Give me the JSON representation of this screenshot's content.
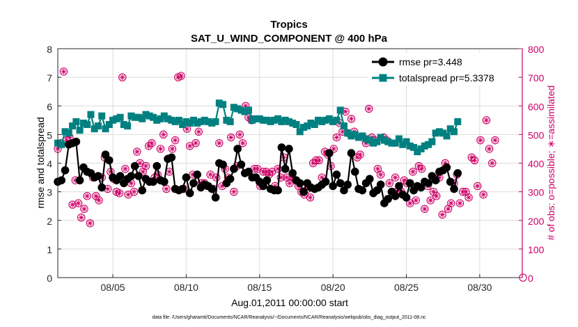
{
  "chart_data": {
    "type": "line",
    "title": "Tropics",
    "subtitle": "SAT_U_WIND_COMPONENT @ 400 hPa",
    "xlabel": "Aug.01,2011 00:00:00 start",
    "ylabel_left": "rmse and totalspread",
    "ylabel_right": "# of obs: o=possible; ∗=assimilated",
    "footnote": "data file: /Users/gharamti/Documents/NCAR/Reanalysis/~/Documents/NCAR/Reanalysis/webpub/obs_diag_output_2011-08.nc",
    "x_unit": "days since Aug 01 2011 00:00 (6-hourly)",
    "xlim": [
      0.25,
      31.9
    ],
    "ylim_left": [
      0,
      8
    ],
    "ylim_right": [
      0,
      800
    ],
    "xticks": [
      4,
      9,
      14,
      19,
      24,
      29
    ],
    "xtick_labels": [
      "08/05",
      "08/10",
      "08/15",
      "08/20",
      "08/25",
      "08/30"
    ],
    "yticks_left": [
      0,
      1,
      2,
      3,
      4,
      5,
      6,
      7,
      8
    ],
    "yticks_right": [
      0,
      100,
      200,
      300,
      400,
      500,
      600,
      700,
      800
    ],
    "grid": true,
    "legend_position": "top-right",
    "x_start": 0.25,
    "x_step": 0.25,
    "colors": {
      "rmse": "#000000",
      "totalspread": "#008080",
      "obs": "#cc0066"
    },
    "series": [
      {
        "name": "rmse pr=3.448",
        "axis": "left",
        "marker": "circle",
        "values": [
          3.35,
          3.4,
          3.75,
          4.65,
          4.7,
          4.75,
          3.4,
          3.85,
          3.7,
          3.65,
          3.5,
          3.55,
          3.15,
          4.3,
          4.1,
          3.5,
          3.4,
          3.55,
          3.3,
          3.45,
          3.55,
          3.9,
          3.55,
          3.05,
          3.45,
          3.35,
          3.35,
          3.9,
          3.4,
          3.35,
          4.15,
          4.2,
          3.1,
          3.05,
          3.1,
          3.5,
          2.95,
          3.3,
          3.6,
          3.15,
          3.25,
          3.2,
          3.1,
          2.8,
          4,
          3.95,
          3.3,
          3.45,
          3.8,
          4.5,
          3.95,
          3.65,
          3.7,
          3.5,
          3.5,
          3.35,
          3.2,
          3.4,
          3.1,
          3.05,
          3.05,
          4.55,
          3.8,
          4.5,
          3.65,
          3.4,
          3.3,
          3,
          3.3,
          3.15,
          3.1,
          3.15,
          3.25,
          3.35,
          4.35,
          3.2,
          3.6,
          3.3,
          3.05,
          3.25,
          4.35,
          3.7,
          3.1,
          3.05,
          3.3,
          3.45,
          2.95,
          3.05,
          3.25,
          2.6,
          2.75,
          3,
          2.85,
          3.2,
          2.9,
          2.8,
          3.3,
          3.05,
          3.2,
          3.15,
          3.35,
          3.3,
          3.55,
          3.4,
          3.7,
          3.75,
          3.85,
          3.35,
          3.1,
          3.65
        ]
      },
      {
        "name": "totalspread pr=5.3378",
        "axis": "left",
        "marker": "square",
        "values": [
          4.7,
          4.65,
          5.1,
          5.05,
          5.3,
          5.45,
          5.15,
          5.4,
          5.35,
          5.7,
          5.2,
          5.3,
          5.65,
          5.2,
          5.35,
          5.5,
          5.55,
          5.6,
          5.35,
          5.3,
          5.65,
          5.6,
          5.6,
          5.55,
          5.7,
          5.65,
          5.6,
          5.5,
          5.55,
          5.65,
          5.55,
          5.5,
          5.45,
          5.5,
          5.35,
          5.45,
          5.4,
          5.5,
          5.4,
          5.45,
          5.5,
          5.45,
          5.4,
          5.45,
          6.1,
          6.05,
          5.5,
          5.45,
          5.95,
          5.9,
          5.85,
          5.8,
          5.85,
          5.5,
          5.55,
          5.55,
          5.5,
          5.5,
          5.45,
          5.5,
          5.55,
          5.45,
          5.5,
          5.45,
          5.4,
          5.35,
          5.1,
          5.25,
          5.3,
          5.4,
          5.35,
          5.5,
          5.45,
          5.5,
          5.55,
          5.45,
          5.5,
          5.85,
          5.3,
          5.05,
          4.95,
          5.0,
          4.9,
          4.95,
          4.85,
          4.8,
          4.7,
          4.75,
          4.9,
          4.8,
          4.75,
          4.7,
          4.7,
          4.85,
          4.65,
          4.75,
          4.6,
          4.55,
          4.4,
          4.5,
          4.6,
          4.65,
          4.75,
          5.05,
          5.1,
          5.05,
          4.95,
          5.2,
          5.1,
          5.45
        ]
      },
      {
        "name": "# of obs",
        "axis": "right",
        "marker": "circle-asterisk",
        "values": [
          450,
          470,
          720,
          480,
          490,
          255,
          340,
          260,
          210,
          240,
          285,
          190,
          350,
          285,
          270,
          350,
          420,
          310,
          370,
          345,
          300,
          295,
          700,
          380,
          290,
          330,
          300,
          440,
          400,
          370,
          390,
          460,
          470,
          350,
          360,
          450,
          500,
          310,
          370,
          450,
          480,
          700,
          705,
          310,
          520,
          460,
          360,
          470,
          510,
          330,
          330,
          320,
          360,
          310,
          350,
          470,
          320,
          380,
          350,
          490,
          300,
          390,
          500,
          470,
          600,
          560,
          550,
          380,
          380,
          320,
          370,
          370,
          360,
          370,
          320,
          380,
          350,
          420,
          350,
          330,
          350,
          340,
          320,
          300,
          290,
          310,
          280,
          400,
          410,
          410,
          350,
          440,
          430,
          390,
          450,
          490,
          540,
          510,
          580,
          505,
          555,
          510,
          420,
          430,
          490,
          470,
          590,
          490,
          480,
          380,
          360,
          490,
          480,
          330,
          300,
          350,
          305,
          300,
          340,
          330,
          260,
          370,
          270,
          390,
          380,
          240,
          320,
          270,
          300,
          285,
          350,
          220,
          400,
          240,
          260,
          330,
          360,
          260,
          300,
          300,
          280,
          420,
          410,
          320,
          480,
          290,
          550,
          450,
          400,
          480
        ]
      }
    ],
    "obs_x_step": 0.2
  }
}
